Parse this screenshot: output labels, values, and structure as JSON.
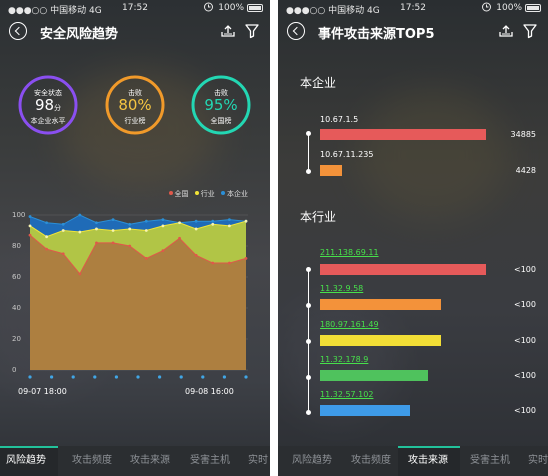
{
  "status_bar": {
    "carrier": "●●●○○ 中国移动  4G",
    "time": "17:52",
    "battery": "100%"
  },
  "left": {
    "title": "安全风险趋势",
    "gauges": [
      {
        "label": "安全状态",
        "value": "98",
        "unit": "分",
        "sub": "本企业水平",
        "color": "#8a4ff0"
      },
      {
        "label": "击败",
        "value": "80%",
        "unit": "",
        "sub": "行业榜",
        "color": "#f19a2a",
        "value_color": "#f5c542"
      },
      {
        "label": "击败",
        "value": "95%",
        "unit": "",
        "sub": "全国榜",
        "color": "#23d7b3",
        "value_color": "#23d7b3"
      }
    ],
    "chart_data": {
      "type": "area",
      "legend": [
        "全国",
        "行业",
        "本企业"
      ],
      "legend_position": "top-right",
      "colors": {
        "全国": "#e0584a",
        "行业": "#f2e437",
        "本企业": "#2b8fd6"
      },
      "x_start": "09-07 18:00",
      "x_end": "09-08 16:00",
      "y_ticks": [
        "0",
        "20",
        "40",
        "60",
        "80",
        "100"
      ],
      "ylim": [
        0,
        100
      ],
      "grid": true,
      "series": [
        {
          "name": "本企业",
          "values": [
            99,
            95,
            94,
            100,
            95,
            97,
            94,
            96,
            97,
            95,
            96,
            96,
            97,
            96
          ]
        },
        {
          "name": "行业",
          "values": [
            93,
            86,
            90,
            89,
            91,
            90,
            91,
            90,
            93,
            95,
            91,
            94,
            93,
            96
          ]
        },
        {
          "name": "全国",
          "values": [
            87,
            78,
            75,
            62,
            82,
            82,
            80,
            72,
            77,
            85,
            74,
            69,
            69,
            72
          ]
        }
      ]
    },
    "tabs": [
      "风险趋势",
      "攻击频度",
      "攻击来源",
      "受害主机",
      "实时"
    ]
  },
  "right": {
    "title": "事件攻击来源TOP5",
    "enterprise": {
      "title": "本企业",
      "items": [
        {
          "ip": "10.67.1.5",
          "value": "34885",
          "fraction": 1.0,
          "color": "#e65a5a"
        },
        {
          "ip": "10.67.11.235",
          "value": "4428",
          "fraction": 0.13,
          "color": "#f3923a"
        }
      ]
    },
    "industry": {
      "title": "本行业",
      "items": [
        {
          "ip": "211.138.69.11",
          "value": "<100",
          "fraction": 1.0,
          "color": "#e65a5a"
        },
        {
          "ip": "11.32.9.58",
          "value": "<100",
          "fraction": 0.73,
          "color": "#f3923a"
        },
        {
          "ip": "180.97.161.49",
          "value": "<100",
          "fraction": 0.73,
          "color": "#f2de36"
        },
        {
          "ip": "11.32.178.9",
          "value": "<100",
          "fraction": 0.65,
          "color": "#4fc25d"
        },
        {
          "ip": "11.32.57.102",
          "value": "<100",
          "fraction": 0.54,
          "color": "#3e9be8"
        }
      ]
    },
    "tabs": [
      "风险趋势",
      "攻击频度",
      "攻击来源",
      "受害主机",
      "实时"
    ]
  },
  "icons": {
    "back": "back-icon",
    "export": "export-icon",
    "filter": "filter-icon"
  }
}
